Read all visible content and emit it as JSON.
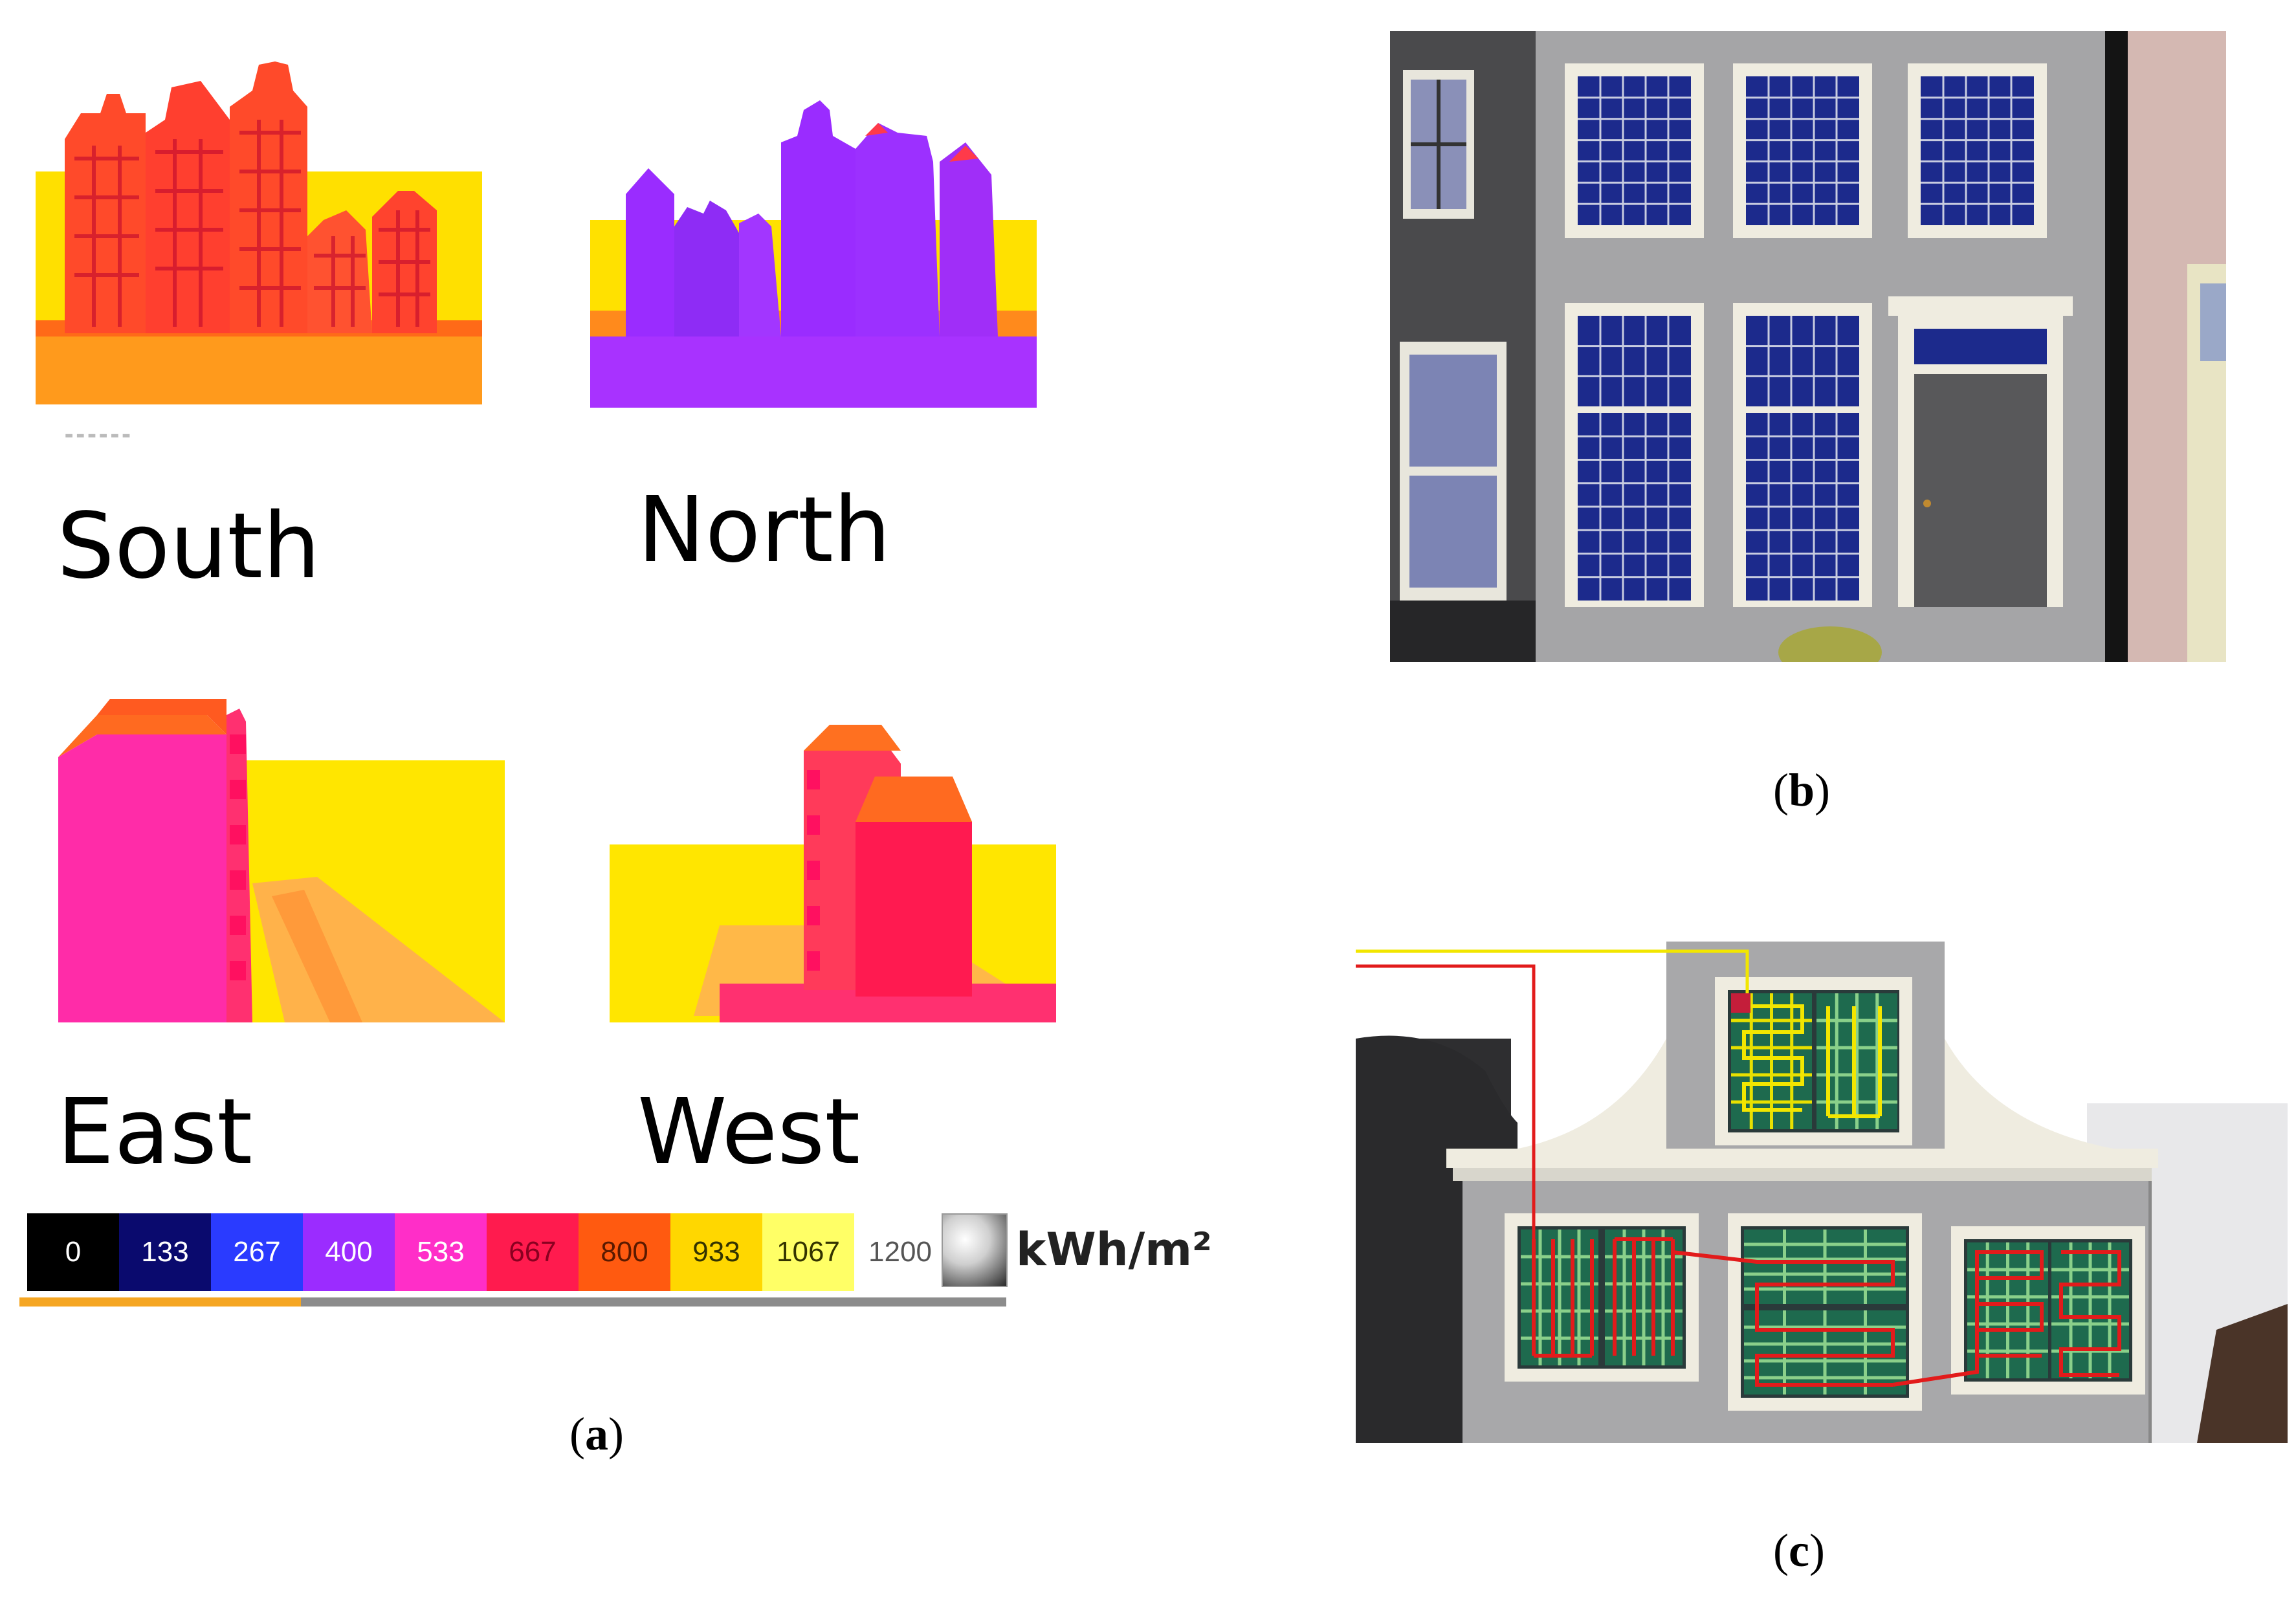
{
  "panel_a": {
    "views": [
      {
        "label": "South"
      },
      {
        "label": "North"
      },
      {
        "label": "East"
      },
      {
        "label": "West"
      }
    ],
    "scale": {
      "values": [
        "0",
        "133",
        "267",
        "400",
        "533",
        "667",
        "800",
        "933",
        "1067",
        "1200"
      ],
      "colors": [
        "#000000",
        "#0a0a6e",
        "#2a3bff",
        "#9b2cff",
        "#ff2ec8",
        "#ff1b4e",
        "#ff5a10",
        "#ffd700",
        "#ffff66",
        "#ffffff"
      ],
      "text_colors": [
        "#ffffff",
        "#ffffff",
        "#ffffff",
        "#ffffff",
        "#ffffff",
        "#8a0020",
        "#5a1a00",
        "#333300",
        "#333300",
        "#555555"
      ],
      "unit": "kWh/m²"
    },
    "caption_letter": "a"
  },
  "panel_b": {
    "caption_letter": "b"
  },
  "panel_c": {
    "caption_letter": "c"
  },
  "colors": {
    "south_bg": "#ffe100",
    "south_building": "#ff4a2a",
    "north_building": "#9a2cff",
    "east_wall": "#ff2aa8",
    "west_wall": "#ff1a50",
    "facade_gray": "#a3a3a5",
    "window_blue": "#1c2a8c",
    "panel_green": "#1e6a4e",
    "wire_red": "#e21b1b",
    "wire_yellow": "#f2e600"
  }
}
